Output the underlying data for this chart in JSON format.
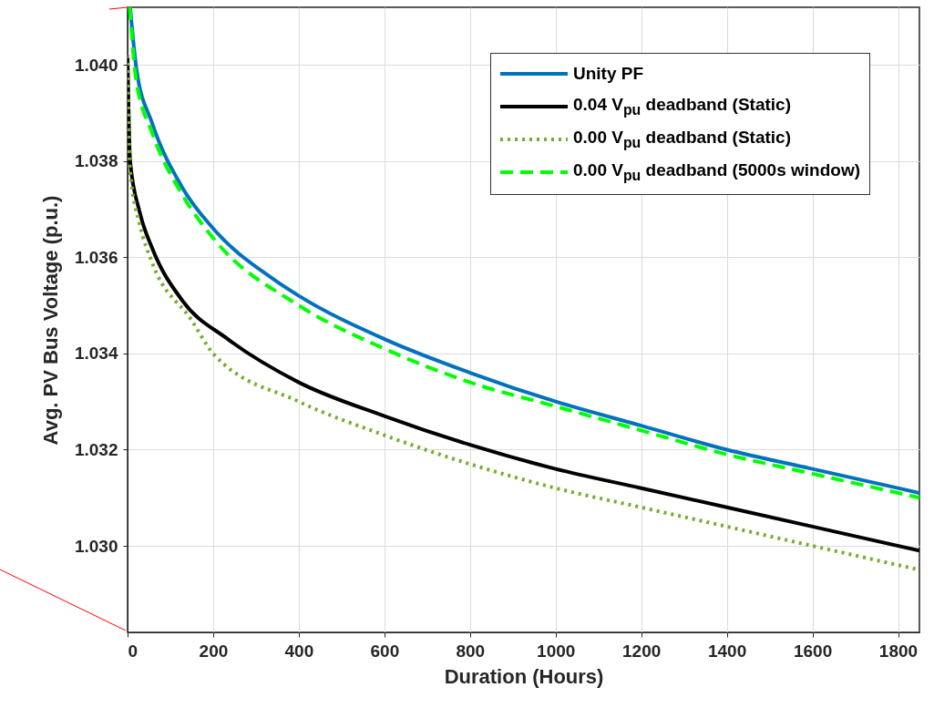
{
  "chart_data": {
    "type": "line",
    "xlabel": "Duration (Hours)",
    "ylabel": "Avg. PV Bus Voltage (p.u.)",
    "xlim": [
      0,
      1850
    ],
    "xticks": [
      0,
      200,
      400,
      600,
      800,
      1000,
      1200,
      1400,
      1600,
      1800
    ],
    "ylim": [
      1.0282,
      1.0412
    ],
    "yticks": [
      {
        "value": 1.03,
        "label": "1.030"
      },
      1.032,
      1.034,
      1.036,
      1.038,
      {
        "value": 1.04,
        "label": "1.040"
      }
    ],
    "grid": true,
    "legend": "top right",
    "marker": "none",
    "series": [
      {
        "name": "Unity PF",
        "color": "#0072bd",
        "line_style": "solid",
        "x": [
          6,
          21,
          57,
          128,
          200,
          340,
          400,
          600,
          800,
          1000,
          1200,
          1400,
          1600,
          1850
        ],
        "values": [
          1.0412,
          1.0399,
          1.0388,
          1.03745,
          1.0366,
          1.03555,
          1.0352,
          1.0343,
          1.0336,
          1.033,
          1.0325,
          1.032,
          1.0316,
          1.0311
        ]
      },
      {
        "name": "0.04 V$_{pu}$ deadband (Static)",
        "color": "#000000",
        "line_style": "solid",
        "x": [
          0,
          6,
          28,
          57,
          128,
          234,
          400,
          600,
          800,
          1000,
          1200,
          1400,
          1600,
          1850
        ],
        "values": [
          1.0402,
          1.038,
          1.03695,
          1.0362,
          1.0351,
          1.0343,
          1.0334,
          1.0327,
          1.0321,
          1.0316,
          1.0312,
          1.0308,
          1.0304,
          1.0299
        ]
      },
      {
        "name": "0.00 V$_{pu}$ deadband (Static)",
        "color": "#77ac30",
        "line_style": "dotted",
        "x": [
          0,
          6,
          28,
          57,
          149,
          200,
          400,
          600,
          800,
          1000,
          1200,
          1400,
          1600,
          1850
        ],
        "values": [
          1.0402,
          1.0378,
          1.0367,
          1.0359,
          1.0347,
          1.034,
          1.033,
          1.0323,
          1.0317,
          1.0312,
          1.0308,
          1.0304,
          1.03,
          1.0295
        ]
      },
      {
        "name": "0.00 V$_{pu}$ deadband (5000s window)",
        "color": "#00ff00",
        "line_style": "dashed",
        "x": [
          5,
          20,
          57,
          128,
          200,
          400,
          600,
          800,
          1000,
          1200,
          1400,
          1600,
          1850
        ],
        "values": [
          1.0412,
          1.0397,
          1.0386,
          1.0373,
          1.0364,
          1.035,
          1.0341,
          1.0334,
          1.0329,
          1.0324,
          1.0319,
          1.0315,
          1.031
        ]
      }
    ]
  }
}
